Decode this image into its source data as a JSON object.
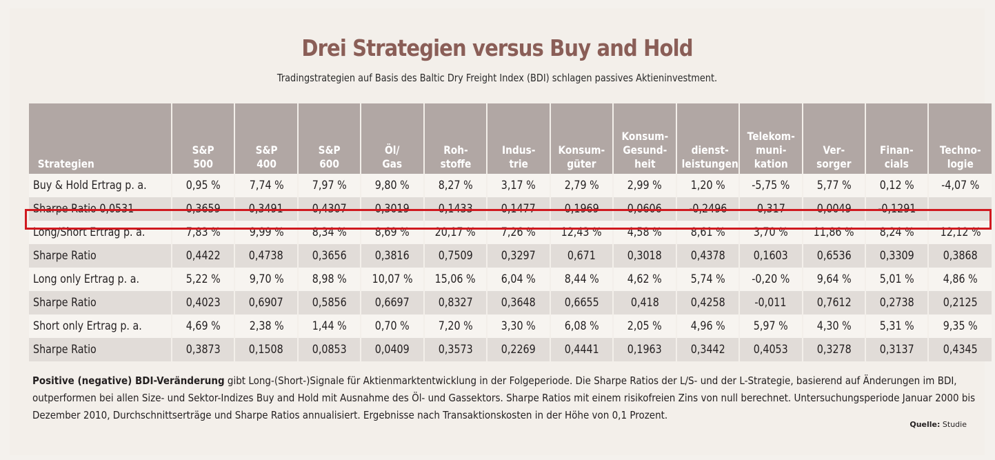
{
  "title": "Drei Strategien versus Buy and Hold",
  "subtitle": "Tradingstrategien auf Basis des Baltic Dry Freight Index (BDI) schlagen passives Aktieninvestment.",
  "table": {
    "headers": [
      "Strategien",
      "S&P\n500",
      "S&P\n400",
      "S&P\n600",
      "Öl/\nGas",
      "Roh-\nstoffe",
      "Indus-\ntrie",
      "Konsum-\ngüter",
      "Konsum-\nGesund-\nheit",
      "dienst-\nleistungen",
      "Telekom-\nmuni-\nkation",
      "Ver-\nsorger",
      "Finan-\ncials",
      "Techno-\nlogie"
    ],
    "rows": [
      {
        "label": "Buy & Hold Ertrag p. a.",
        "values": [
          "0,95 %",
          "7,74 %",
          "7,97 %",
          "9,80 %",
          "8,27 %",
          "3,17 %",
          "2,79 %",
          "2,99 %",
          "1,20 %",
          "-5,75 %",
          "5,77 %",
          "0,12 %",
          "-4,07 %"
        ]
      },
      {
        "label": "Sharpe Ratio 0,0531",
        "values": [
          "0,3659",
          "0,3491",
          "0,4307",
          "0,3019",
          "0,1433",
          "0,1477",
          "0,1969",
          "0,0606",
          "-0,2496",
          "0,317",
          "0,0049",
          "-0,1291",
          ""
        ]
      },
      {
        "label": "Long/Short Ertrag p. a.",
        "values": [
          "7,83 %",
          "9,99 %",
          "8,34 %",
          "8,69 %",
          "20,17 %",
          "7,26 %",
          "12,43 %",
          "4,58 %",
          "8,61 %",
          "3,70 %",
          "11,86 %",
          "8,24 %",
          "12,12 %"
        ]
      },
      {
        "label": "Sharpe Ratio",
        "values": [
          "0,4422",
          "0,4738",
          "0,3656",
          "0,3816",
          "0,7509",
          "0,3297",
          "0,671",
          "0,3018",
          "0,4378",
          "0,1603",
          "0,6536",
          "0,3309",
          "0,3868"
        ]
      },
      {
        "label": "Long only Ertrag p. a.",
        "values": [
          "5,22 %",
          "9,70 %",
          "8,98 %",
          "10,07 %",
          "15,06 %",
          "6,04 %",
          "8,44 %",
          "4,62 %",
          "5,74 %",
          "-0,20 %",
          "9,64 %",
          "5,01 %",
          "4,86 %"
        ]
      },
      {
        "label": "Sharpe Ratio",
        "values": [
          "0,4023",
          "0,6907",
          "0,5856",
          "0,6697",
          "0,8327",
          "0,3648",
          "0,6655",
          "0,418",
          "0,4258",
          "-0,011",
          "0,7612",
          "0,2738",
          "0,2125"
        ]
      },
      {
        "label": "Short only Ertrag p. a.",
        "values": [
          "4,69 %",
          "2,38 %",
          "1,44 %",
          "0,70 %",
          "7,20 %",
          "3,30 %",
          "6,08 %",
          "2,05 %",
          "4,96 %",
          "5,97 %",
          "4,30 %",
          "5,31 %",
          "9,35 %"
        ]
      },
      {
        "label": "Sharpe Ratio",
        "values": [
          "0,3873",
          "0,1508",
          "0,0853",
          "0,0409",
          "0,3573",
          "0,2269",
          "0,4441",
          "0,1963",
          "0,3442",
          "0,4053",
          "0,3278",
          "0,3137",
          "0,4345"
        ]
      }
    ]
  },
  "highlight_color": "#d0191f",
  "note": {
    "bold_lead": "Positive (negative) BDI-Veränderung",
    "text": " gibt Long-(Short-)Signale für Aktienmarktentwicklung in der Folgeperiode. Die Sharpe Ratios der L/S- und der L-Strategie, basierend auf Änderungen im BDI, outperformen bei allen Size- und Sektor-Indizes Buy and Hold mit Ausnahme des Öl- und Gassektors. Sharpe Ratios mit einem risikofreien Zins von null berechnet. Untersuchungsperiode Januar 2000 bis Dezember 2010, Durchschnittserträge und Sharpe Ratios annualisiert. Ergebnisse nach Transaktionskosten in der Höhe von 0,1 Prozent."
  },
  "source": {
    "label": "Quelle:",
    "value": " Studie"
  }
}
